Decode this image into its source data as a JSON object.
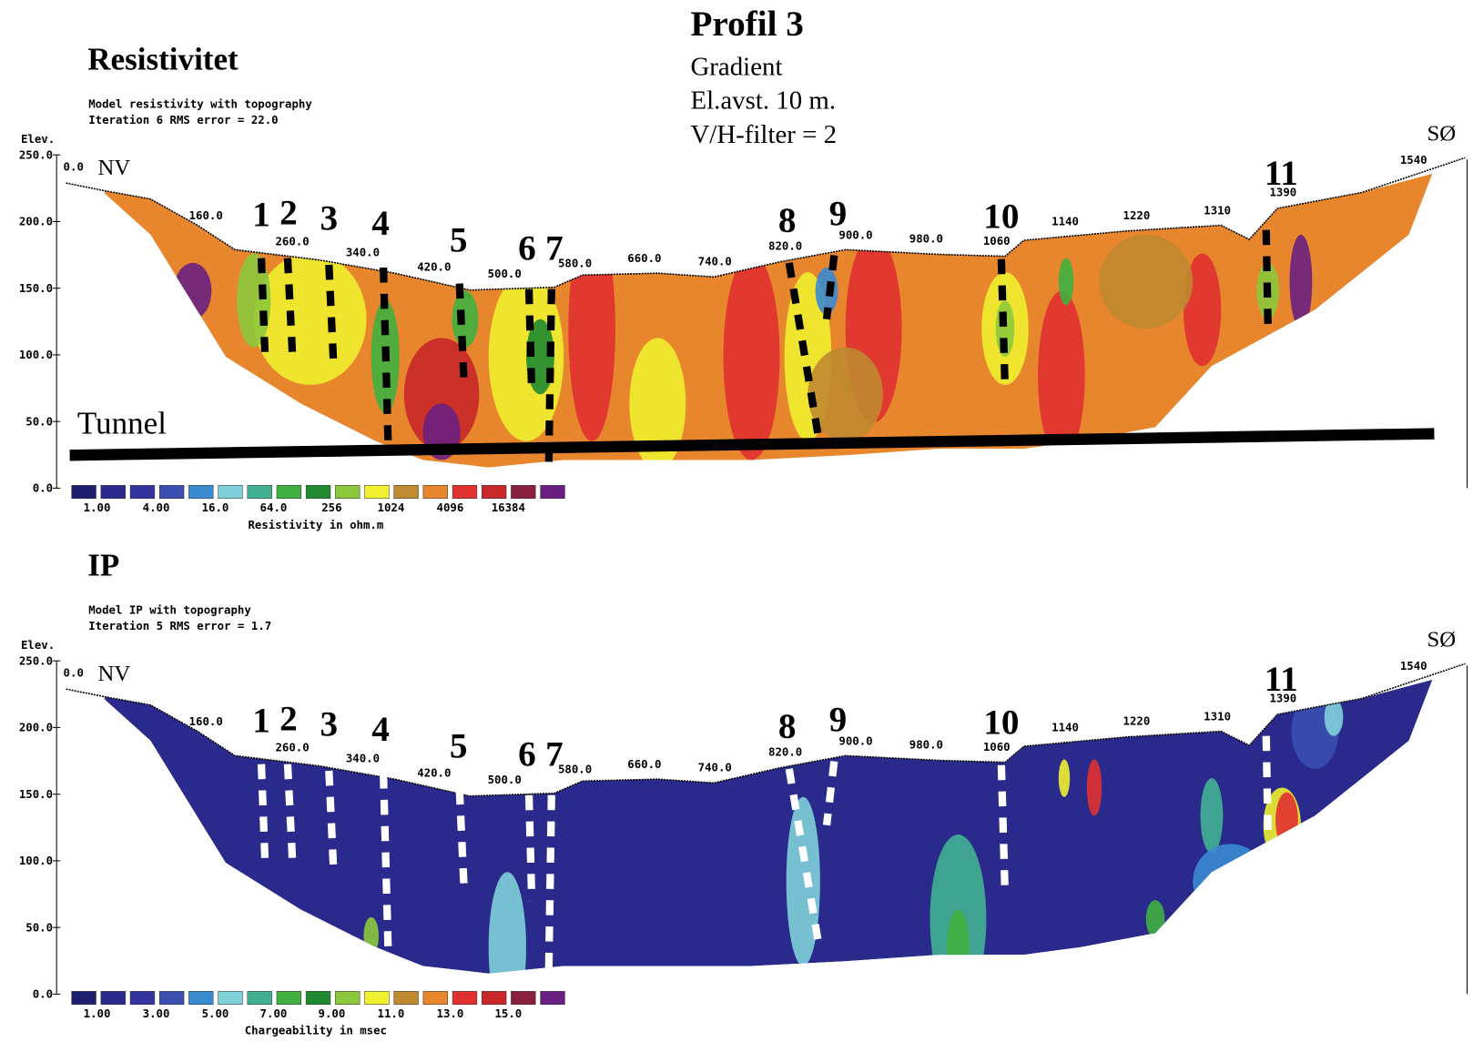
{
  "header": {
    "title": "Profil  3",
    "lines": [
      "Gradient",
      "El.avst. 10 m.",
      "V/H-filter = 2"
    ]
  },
  "panels": [
    {
      "title": "Resistivitet",
      "model_lines": [
        "Model resistivity with topography",
        "Iteration 6 RMS error = 22.0"
      ],
      "elev_label": "Elev.",
      "yticks": [
        "250.0",
        "200.0",
        "150.0",
        "100.0",
        "50.0",
        "0.0"
      ],
      "start_label": "0.0",
      "left_dir": "NV",
      "right_dir": "SØ",
      "distance_labels": [
        "160.0",
        "260.0",
        "340.0",
        "420.0",
        "500.0",
        "580.0",
        "660.0",
        "740.0",
        "820.0",
        "900.0",
        "980.0",
        "1060",
        "1140",
        "1220",
        "1310",
        "1390",
        "1540"
      ],
      "markers": [
        "1",
        "2",
        "3",
        "4",
        "5",
        "6",
        "7",
        "8",
        "9",
        "10",
        "11"
      ],
      "annotation": "Tunnel",
      "colorbar_labels": [
        "1.00",
        "4.00",
        "16.0",
        "64.0",
        "256",
        "1024",
        "4096",
        "16384"
      ],
      "colorbar_title": "Resistivity in ohm.m"
    },
    {
      "title": "IP",
      "model_lines": [
        "Model IP with topography",
        "Iteration 5 RMS error = 1.7"
      ],
      "elev_label": "Elev.",
      "yticks": [
        "250.0",
        "200.0",
        "150.0",
        "100.0",
        "50.0",
        "0.0"
      ],
      "start_label": "0.0",
      "left_dir": "NV",
      "right_dir": "SØ",
      "distance_labels": [
        "160.0",
        "260.0",
        "340.0",
        "420.0",
        "500.0",
        "580.0",
        "660.0",
        "740.0",
        "820.0",
        "900.0",
        "980.0",
        "1060",
        "1140",
        "1220",
        "1310",
        "1390",
        "1540"
      ],
      "markers": [
        "1",
        "2",
        "3",
        "4",
        "5",
        "6",
        "7",
        "8",
        "9",
        "10",
        "11"
      ],
      "colorbar_labels": [
        "1.00",
        "3.00",
        "5.00",
        "7.00",
        "9.00",
        "11.0",
        "13.0",
        "15.0"
      ],
      "colorbar_title": "Chargeability in msec"
    }
  ]
}
